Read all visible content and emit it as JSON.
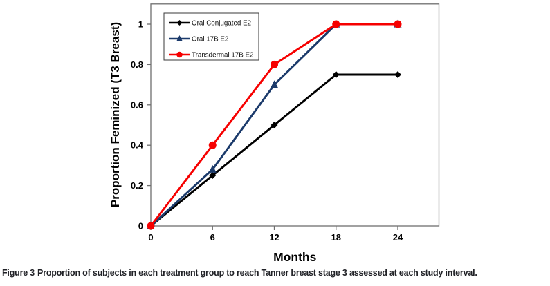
{
  "chart_data": {
    "type": "line",
    "x": [
      0,
      6,
      12,
      18,
      24
    ],
    "series": [
      {
        "name": "Oral Conjugated E2",
        "color": "#000000",
        "marker": "diamond",
        "values": [
          0,
          0.25,
          0.5,
          0.75,
          0.75
        ]
      },
      {
        "name": "Oral 17B E2",
        "color": "#1B3A6B",
        "marker": "triangle",
        "values": [
          0,
          0.28,
          0.7,
          1,
          1
        ]
      },
      {
        "name": "Transdermal 17B E2",
        "color": "#F60000",
        "marker": "circle",
        "values": [
          0,
          0.4,
          0.8,
          1,
          1
        ]
      }
    ],
    "xlabel": "Months",
    "ylabel": "Proportion Feminized (T3 Breast)",
    "xticks": [
      0,
      6,
      12,
      18,
      24
    ],
    "xtick_labels": [
      "0",
      "6",
      "12",
      "18",
      "24"
    ],
    "yticks": [
      0,
      0.2,
      0.4,
      0.6,
      0.8,
      1
    ],
    "ytick_labels": [
      "0",
      "0.2",
      "0.4",
      "0.6",
      "0.8",
      "1"
    ],
    "xlim": [
      0,
      28
    ],
    "ylim": [
      0,
      1.1
    ],
    "grid": false,
    "legend_position": "top-left",
    "axis_color": "#6e6e6e",
    "tick_label_color": "#000000"
  },
  "caption": {
    "label": "Figure 3",
    "text": "Proportion of subjects in each treatment group to reach Tanner breast stage 3 assessed at each study interval."
  }
}
